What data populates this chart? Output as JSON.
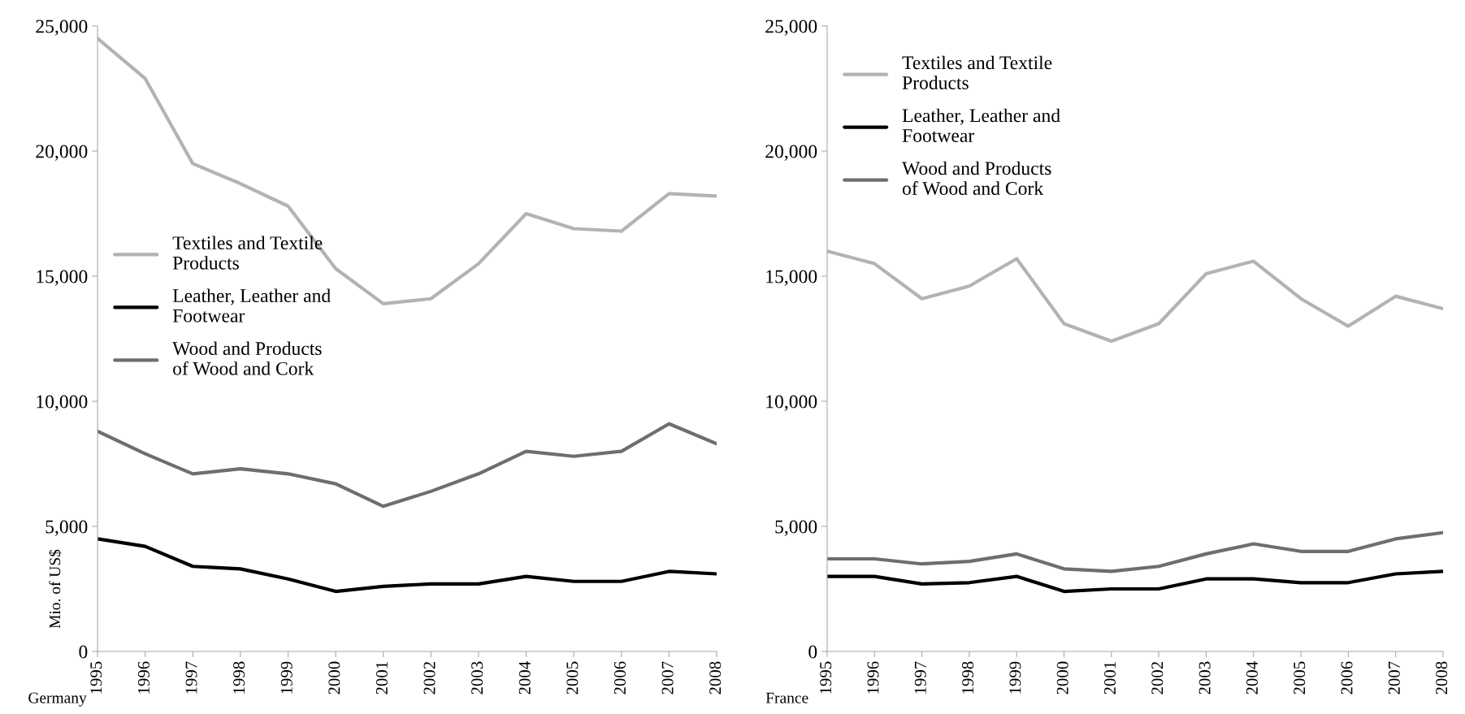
{
  "chart_data": [
    {
      "type": "line",
      "xlabel": "Germany",
      "ylabel": "Mio. of US$",
      "categories": [
        "1995",
        "1996",
        "1997",
        "1998",
        "1999",
        "2000",
        "2001",
        "2002",
        "2003",
        "2004",
        "2005",
        "2006",
        "2007",
        "2008"
      ],
      "series": [
        {
          "name": "Textiles and Textile\nProducts",
          "color": "#b3b3b3",
          "values": [
            24500.0,
            22900.0,
            19500.0,
            18700.0,
            17800.0,
            15300.0,
            13900.0,
            14100.0,
            15500.0,
            17500.0,
            16900.0,
            16800.0,
            18300.0,
            18200.0
          ]
        },
        {
          "name": "Leather, Leather and\nFootwear",
          "color": "#000000",
          "values": [
            4500,
            4200,
            3400,
            3300,
            2900,
            2400,
            2600,
            2700,
            2700,
            3000,
            2800,
            2800,
            3200,
            3100
          ]
        },
        {
          "name": "Wood and Products\nof Wood and Cork",
          "color": "#6e6e6e",
          "values": [
            8800,
            7900,
            7100,
            7300,
            7100,
            6700,
            5800,
            6400,
            7100,
            8000,
            7800,
            8000,
            9100,
            8300
          ]
        }
      ],
      "ylim": [
        0,
        25000
      ],
      "yticks": [
        0,
        {
          "value": 5000,
          "label": "5,000"
        },
        {
          "value": 10000,
          "label": "10,000"
        },
        {
          "value": 15000,
          "label": "15,000"
        },
        {
          "value": 20000,
          "label": "20,000"
        },
        {
          "value": 25000,
          "label": "25,000"
        }
      ],
      "grid": false,
      "legend": "left",
      "marker": "none",
      "line_style": "solid"
    },
    {
      "type": "line",
      "xlabel": "France",
      "categories": [
        "1995",
        "1996",
        "1997",
        "1998",
        "1999",
        "2000",
        "2001",
        "2002",
        "2003",
        "2004",
        "2005",
        "2006",
        "2007",
        "2008"
      ],
      "series": [
        {
          "name": "Textiles and Textile\nProducts",
          "color": "#b3b3b3",
          "values": [
            16000,
            15500,
            14100,
            14600,
            15700,
            13100,
            12400,
            13100,
            15100,
            15600,
            14100,
            13000,
            14200,
            13700
          ]
        },
        {
          "name": "Leather, Leather and\nFootwear",
          "color": "#000000",
          "values": [
            3000,
            3000,
            2700,
            2750,
            3000,
            2400,
            2500,
            2500,
            2900,
            2900,
            2750,
            2750,
            3100,
            3200
          ]
        },
        {
          "name": "Wood and Products\nof Wood and Cork",
          "color": "#6e6e6e",
          "values": [
            3700,
            3700,
            3500,
            3600,
            3900,
            3300,
            3200,
            3400,
            3900,
            4300,
            4000,
            4000,
            4500,
            4750
          ]
        }
      ],
      "ylim": [
        0,
        25000
      ],
      "yticks": [
        0,
        {
          "value": 5000,
          "label": "5,000"
        },
        {
          "value": 10000,
          "label": "10,000"
        },
        {
          "value": 15000,
          "label": "15,000"
        },
        {
          "value": 20000,
          "label": "20,000"
        },
        {
          "value": 25000,
          "label": "25,000"
        }
      ],
      "grid": false,
      "legend": "top left",
      "marker": "none",
      "line_style": "solid"
    }
  ]
}
